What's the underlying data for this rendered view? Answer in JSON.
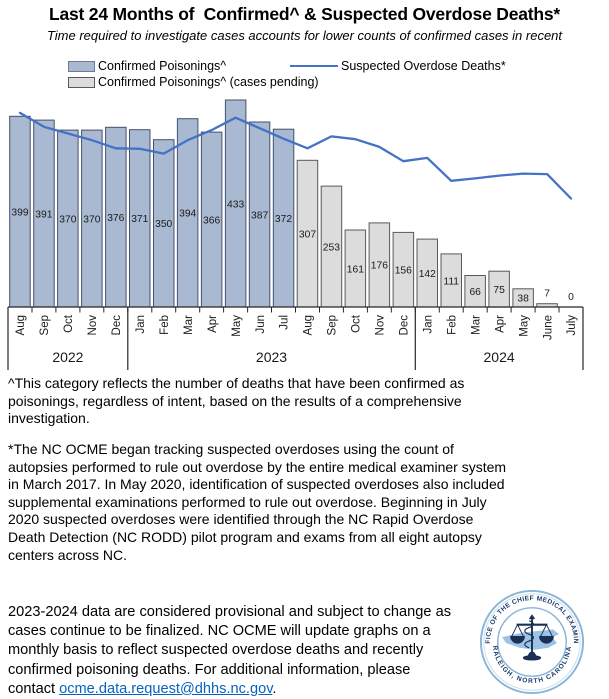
{
  "title": "Last 24 Months of  Confirmed^ & Suspected Overdose Deaths*",
  "subtitle": "Time required to investigate cases accounts for lower counts of confirmed cases in recent",
  "legend": {
    "confirmed": "Confirmed Poisonings^",
    "pending": "Confirmed Poisonings^ (cases pending)",
    "suspected": "Suspected Overdose Deaths*"
  },
  "colors": {
    "confirmed_fill": "#A9B9D2",
    "confirmed_border": "#44506B",
    "pending_fill": "#DCDCDC",
    "pending_border": "#595959",
    "line": "#4472C4",
    "axis": "#262626",
    "label_text": "#1A1A1A",
    "link": "#0563C1",
    "seal_text": "#1C3C6E",
    "seal_ring": "#8AB4D8",
    "seal_state": "#9CC3E4"
  },
  "chart_data": {
    "type": "bar",
    "categories": [
      "Aug",
      "Sep",
      "Oct",
      "Nov",
      "Dec",
      "Jan",
      "Feb",
      "Mar",
      "Apr",
      "May",
      "Jun",
      "Jul",
      "Aug",
      "Sep",
      "Oct",
      "Nov",
      "Dec",
      "Jan",
      "Feb",
      "Mar",
      "Apr",
      "May",
      "June",
      "July"
    ],
    "year_groups": [
      {
        "label": "2022",
        "from": 0,
        "to": 4
      },
      {
        "label": "2023",
        "from": 5,
        "to": 16
      },
      {
        "label": "2024",
        "from": 17,
        "to": 23
      }
    ],
    "series": [
      {
        "name": "Confirmed Poisonings^",
        "type": "bar",
        "values": [
          399,
          391,
          370,
          370,
          376,
          371,
          350,
          394,
          366,
          433,
          387,
          372,
          null,
          null,
          null,
          null,
          null,
          null,
          null,
          null,
          null,
          null,
          null,
          null
        ]
      },
      {
        "name": "Confirmed Poisonings^ (cases pending)",
        "type": "bar",
        "values": [
          null,
          null,
          null,
          null,
          null,
          null,
          null,
          null,
          null,
          null,
          null,
          null,
          307,
          253,
          161,
          176,
          156,
          142,
          111,
          66,
          75,
          38,
          7,
          0
        ]
      },
      {
        "name": "Suspected Overdose Deaths*",
        "type": "line",
        "values": [
          406,
          377,
          363,
          349,
          332,
          331,
          321,
          349,
          370,
          396,
          374,
          352,
          332,
          357,
          351,
          335,
          305,
          312,
          264,
          269,
          275,
          279,
          278,
          227
        ]
      }
    ],
    "title": "Last 24 Months of  Confirmed^ & Suspected Overdose Deaths*",
    "xlabel": "",
    "ylabel": "",
    "ylim": [
      0,
      445
    ],
    "grid": false,
    "value_labels": true,
    "legend_position": "top"
  },
  "footnotes": {
    "note1": "^This category reflects the number of deaths that have been confirmed as poisonings, regardless of intent, based on the results of a comprehensive investigation.",
    "note2": "*The NC OCME began tracking suspected overdoses using the count of autopsies performed to rule out overdose by the entire medical examiner system in March 2017. In May 2020, identification of suspected overdoses also included supplemental examinations performed to rule out overdose. Beginning in July 2020 suspected overdoses were identified through the NC Rapid Overdose Death Detection (NC RODD) pilot program and exams from all eight autopsy centers across NC."
  },
  "contact": {
    "before": "2023-2024 data are considered provisional and subject to change as cases continue to be finalized. NC OCME will update graphs on a monthly basis to reflect suspected overdose deaths and recently confirmed poisoning deaths. For additional information, please contact ",
    "link_text": "ocme.data.request@dhhs.nc.gov",
    "after": "."
  },
  "seal": {
    "top_text": "OFFICE OF THE CHIEF MEDICAL EXAMINER",
    "bottom_text": "RALEIGH, NORTH CAROLINA"
  }
}
